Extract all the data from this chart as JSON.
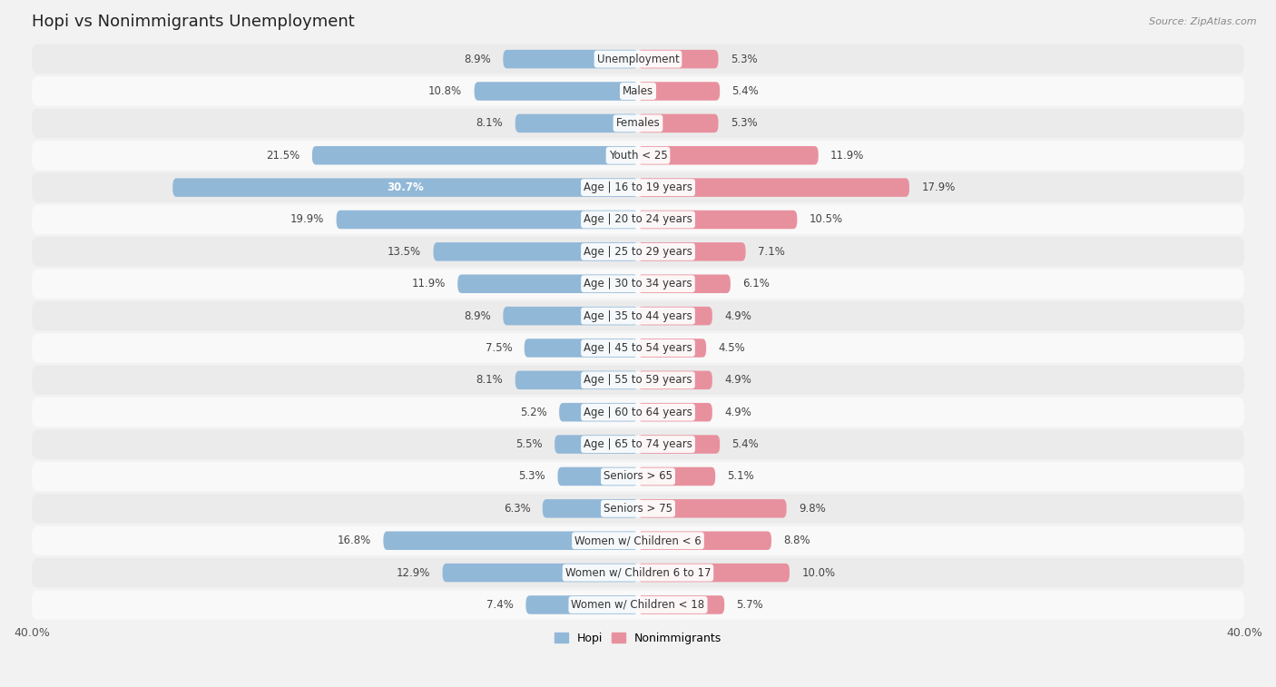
{
  "title": "Hopi vs Nonimmigrants Unemployment",
  "source": "Source: ZipAtlas.com",
  "categories": [
    "Unemployment",
    "Males",
    "Females",
    "Youth < 25",
    "Age | 16 to 19 years",
    "Age | 20 to 24 years",
    "Age | 25 to 29 years",
    "Age | 30 to 34 years",
    "Age | 35 to 44 years",
    "Age | 45 to 54 years",
    "Age | 55 to 59 years",
    "Age | 60 to 64 years",
    "Age | 65 to 74 years",
    "Seniors > 65",
    "Seniors > 75",
    "Women w/ Children < 6",
    "Women w/ Children 6 to 17",
    "Women w/ Children < 18"
  ],
  "hopi_values": [
    8.9,
    10.8,
    8.1,
    21.5,
    30.7,
    19.9,
    13.5,
    11.9,
    8.9,
    7.5,
    8.1,
    5.2,
    5.5,
    5.3,
    6.3,
    16.8,
    12.9,
    7.4
  ],
  "nonimmigrant_values": [
    5.3,
    5.4,
    5.3,
    11.9,
    17.9,
    10.5,
    7.1,
    6.1,
    4.9,
    4.5,
    4.9,
    4.9,
    5.4,
    5.1,
    9.8,
    8.8,
    10.0,
    5.7
  ],
  "hopi_color": "#92b8d8",
  "nonimmigrant_color": "#e8919e",
  "background_color": "#f2f2f2",
  "row_color_odd": "#ebebeb",
  "row_color_even": "#f9f9f9",
  "axis_limit": 40.0,
  "bar_height": 0.58,
  "title_fontsize": 13,
  "label_fontsize": 8.5,
  "tick_fontsize": 9,
  "value_label_threshold": 28.0
}
